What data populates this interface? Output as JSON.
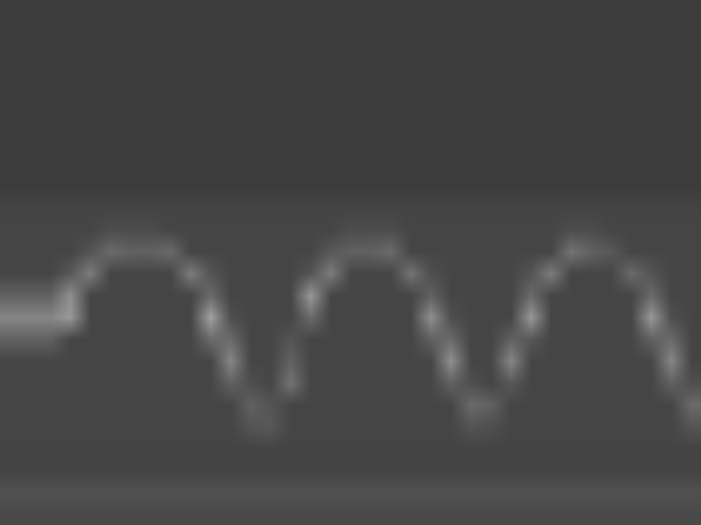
{
  "chart_data": {
    "type": "heatmap",
    "tick_labels": false,
    "zlim": [
      0,
      100
    ],
    "cells": [
      [
        5,
        5,
        5,
        5,
        5,
        5,
        5,
        5,
        5,
        5,
        5,
        5,
        5,
        5,
        5,
        5,
        5,
        5,
        5,
        5,
        5,
        5,
        5,
        5,
        5,
        5,
        5,
        5,
        5,
        5,
        5,
        5,
        5,
        5,
        5
      ],
      [
        5,
        5,
        5,
        5,
        5,
        5,
        5,
        5,
        5,
        5,
        5,
        5,
        5,
        5,
        5,
        5,
        5,
        5,
        5,
        5,
        5,
        5,
        5,
        5,
        5,
        5,
        5,
        5,
        5,
        5,
        5,
        5,
        5,
        5,
        5
      ],
      [
        5,
        5,
        5,
        5,
        5,
        5,
        5,
        5,
        5,
        5,
        5,
        5,
        5,
        5,
        5,
        5,
        5,
        5,
        5,
        5,
        5,
        5,
        5,
        5,
        5,
        5,
        5,
        5,
        5,
        5,
        5,
        5,
        5,
        5,
        5
      ],
      [
        5,
        5,
        5,
        5,
        5,
        5,
        5,
        5,
        5,
        5,
        5,
        5,
        5,
        5,
        5,
        5,
        5,
        5,
        5,
        5,
        5,
        5,
        5,
        5,
        5,
        5,
        5,
        5,
        5,
        5,
        5,
        5,
        5,
        5,
        5
      ],
      [
        5,
        5,
        5,
        5,
        5,
        5,
        5,
        5,
        5,
        5,
        5,
        5,
        5,
        5,
        5,
        5,
        5,
        5,
        5,
        5,
        5,
        5,
        5,
        5,
        5,
        5,
        5,
        5,
        5,
        5,
        5,
        5,
        5,
        5,
        5
      ],
      [
        5,
        5,
        5,
        5,
        5,
        5,
        5,
        5,
        5,
        5,
        5,
        5,
        5,
        5,
        5,
        5,
        5,
        5,
        5,
        5,
        5,
        5,
        5,
        5,
        5,
        5,
        5,
        5,
        5,
        5,
        5,
        5,
        5,
        5,
        5
      ],
      [
        5,
        5,
        5,
        5,
        5,
        5,
        5,
        5,
        5,
        5,
        5,
        5,
        5,
        5,
        5,
        5,
        5,
        5,
        5,
        5,
        5,
        5,
        5,
        5,
        5,
        5,
        5,
        5,
        5,
        5,
        5,
        5,
        5,
        5,
        5
      ],
      [
        5,
        5,
        5,
        5,
        5,
        5,
        5,
        5,
        5,
        5,
        5,
        5,
        5,
        5,
        5,
        5,
        5,
        5,
        5,
        5,
        5,
        5,
        5,
        5,
        5,
        5,
        5,
        5,
        5,
        5,
        5,
        5,
        5,
        5,
        5
      ],
      [
        5,
        5,
        5,
        5,
        5,
        5,
        5,
        5,
        5,
        5,
        5,
        5,
        5,
        5,
        5,
        5,
        5,
        5,
        5,
        5,
        5,
        5,
        5,
        5,
        5,
        5,
        5,
        5,
        5,
        5,
        5,
        5,
        5,
        5,
        5
      ],
      [
        9,
        9,
        9,
        9,
        9,
        9,
        9,
        9,
        9,
        9,
        9,
        9,
        9,
        9,
        9,
        9,
        9,
        9,
        9,
        9,
        9,
        9,
        9,
        9,
        9,
        9,
        9,
        9,
        9,
        9,
        9,
        9,
        9,
        9,
        9
      ],
      [
        10,
        10,
        10,
        10,
        10,
        14,
        14,
        14,
        10,
        10,
        10,
        10,
        10,
        10,
        10,
        10,
        10,
        14,
        14,
        14,
        10,
        10,
        10,
        10,
        10,
        10,
        10,
        10,
        14,
        14,
        10,
        10,
        10,
        10,
        10
      ],
      [
        10,
        10,
        10,
        10,
        18,
        30,
        25,
        25,
        30,
        10,
        10,
        10,
        10,
        10,
        10,
        10,
        20,
        25,
        25,
        30,
        10,
        10,
        10,
        10,
        10,
        10,
        10,
        10,
        35,
        25,
        20,
        10,
        10,
        10,
        10
      ],
      [
        10,
        10,
        10,
        20,
        40,
        10,
        10,
        10,
        10,
        40,
        18,
        10,
        10,
        10,
        10,
        18,
        40,
        10,
        10,
        10,
        35,
        15,
        10,
        10,
        10,
        10,
        18,
        40,
        10,
        10,
        10,
        30,
        18,
        10,
        10
      ],
      [
        25,
        25,
        25,
        50,
        10,
        10,
        10,
        10,
        10,
        10,
        30,
        10,
        10,
        10,
        10,
        55,
        10,
        10,
        10,
        10,
        10,
        25,
        10,
        10,
        10,
        10,
        30,
        10,
        10,
        10,
        10,
        10,
        30,
        10,
        10
      ],
      [
        45,
        45,
        45,
        55,
        10,
        10,
        10,
        10,
        10,
        10,
        60,
        15,
        10,
        10,
        10,
        30,
        10,
        10,
        10,
        10,
        10,
        50,
        15,
        10,
        10,
        10,
        55,
        10,
        10,
        10,
        10,
        10,
        55,
        15,
        10
      ],
      [
        25,
        25,
        25,
        10,
        10,
        10,
        10,
        10,
        10,
        10,
        30,
        30,
        10,
        10,
        18,
        10,
        10,
        10,
        10,
        10,
        10,
        25,
        30,
        10,
        10,
        25,
        20,
        10,
        10,
        10,
        10,
        10,
        25,
        30,
        10
      ],
      [
        10,
        10,
        10,
        10,
        10,
        10,
        10,
        10,
        10,
        10,
        10,
        45,
        10,
        10,
        25,
        10,
        10,
        10,
        10,
        10,
        10,
        10,
        50,
        10,
        10,
        45,
        10,
        10,
        10,
        10,
        10,
        10,
        10,
        45,
        10
      ],
      [
        10,
        10,
        10,
        10,
        10,
        10,
        10,
        10,
        10,
        10,
        10,
        25,
        15,
        10,
        35,
        10,
        10,
        10,
        10,
        10,
        10,
        10,
        25,
        15,
        10,
        20,
        10,
        10,
        10,
        10,
        10,
        10,
        10,
        25,
        15
      ],
      [
        10,
        10,
        10,
        10,
        10,
        10,
        10,
        10,
        10,
        10,
        10,
        10,
        25,
        18,
        10,
        10,
        10,
        10,
        10,
        10,
        10,
        10,
        10,
        30,
        25,
        10,
        10,
        10,
        10,
        10,
        10,
        10,
        10,
        10,
        30
      ],
      [
        10,
        10,
        10,
        10,
        10,
        10,
        10,
        10,
        10,
        10,
        10,
        10,
        18,
        20,
        10,
        10,
        10,
        10,
        10,
        10,
        10,
        10,
        10,
        18,
        15,
        10,
        10,
        10,
        10,
        10,
        10,
        10,
        10,
        10,
        18
      ],
      [
        9,
        9,
        9,
        9,
        9,
        9,
        9,
        9,
        9,
        9,
        9,
        9,
        9,
        9,
        9,
        9,
        9,
        9,
        9,
        9,
        9,
        9,
        9,
        9,
        9,
        9,
        9,
        9,
        9,
        9,
        9,
        9,
        9,
        9,
        9
      ],
      [
        9,
        9,
        9,
        9,
        9,
        9,
        9,
        9,
        9,
        9,
        9,
        9,
        9,
        9,
        9,
        9,
        9,
        9,
        9,
        9,
        9,
        9,
        9,
        9,
        9,
        9,
        9,
        9,
        9,
        9,
        9,
        9,
        9,
        9,
        9
      ],
      [
        16,
        16,
        16,
        16,
        16,
        16,
        16,
        16,
        16,
        16,
        16,
        16,
        16,
        16,
        16,
        16,
        16,
        16,
        16,
        16,
        16,
        16,
        16,
        16,
        16,
        16,
        16,
        16,
        16,
        16,
        16,
        16,
        16,
        16,
        16
      ],
      [
        12,
        12,
        12,
        12,
        12,
        12,
        12,
        12,
        12,
        12,
        12,
        12,
        12,
        12,
        12,
        12,
        12,
        12,
        12,
        12,
        12,
        12,
        12,
        12,
        12,
        12,
        12,
        12,
        12,
        12,
        12,
        12,
        12,
        12,
        12
      ]
    ]
  }
}
